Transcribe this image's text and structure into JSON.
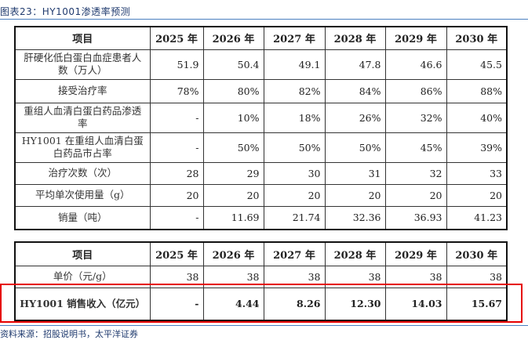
{
  "title": "图表23：HY1001渗透率预测",
  "source": "资料来源：招股说明书，太平洋证券",
  "table1": {
    "headers": [
      "项目",
      "2025 年",
      "2026 年",
      "2027 年",
      "2028 年",
      "2029 年",
      "2030 年"
    ],
    "rows": [
      {
        "label": "肝硬化低白蛋白血症患者人数（万人）",
        "values": [
          "51.9",
          "50.4",
          "49.1",
          "47.8",
          "46.6",
          "45.5"
        ]
      },
      {
        "label": "接受治疗率",
        "values": [
          "78%",
          "80%",
          "82%",
          "84%",
          "86%",
          "88%"
        ]
      },
      {
        "label": "重组人血清白蛋白药品渗透率",
        "values": [
          "-",
          "10%",
          "18%",
          "26%",
          "32%",
          "40%"
        ]
      },
      {
        "label": "HY1001 在重组人血清白蛋白药品市占率",
        "values": [
          "-",
          "50%",
          "50%",
          "50%",
          "45%",
          "39%"
        ]
      },
      {
        "label": "治疗次数（次）",
        "values": [
          "28",
          "29",
          "30",
          "31",
          "32",
          "33"
        ]
      },
      {
        "label": "平均单次使用量（g）",
        "values": [
          "20",
          "20",
          "20",
          "20",
          "20",
          "20"
        ]
      },
      {
        "label": "销量（吨）",
        "values": [
          "-",
          "11.69",
          "21.74",
          "32.36",
          "36.93",
          "41.23"
        ]
      }
    ]
  },
  "table2": {
    "headers": [
      "项目",
      "2025 年",
      "2026 年",
      "2027 年",
      "2028 年",
      "2029 年",
      "2030 年"
    ],
    "rows": [
      {
        "label": "单价（元/g）",
        "values": [
          "38",
          "38",
          "38",
          "38",
          "38",
          "38"
        ]
      },
      {
        "label": "HY1001 销售收入（亿元）",
        "values": [
          "-",
          "4.44",
          "8.26",
          "12.30",
          "14.03",
          "15.67"
        ],
        "highlighted": true
      }
    ]
  },
  "colors": {
    "highlight_box": "#e60000",
    "title": "#1f3a6e",
    "rule": "#4a7fc0"
  }
}
